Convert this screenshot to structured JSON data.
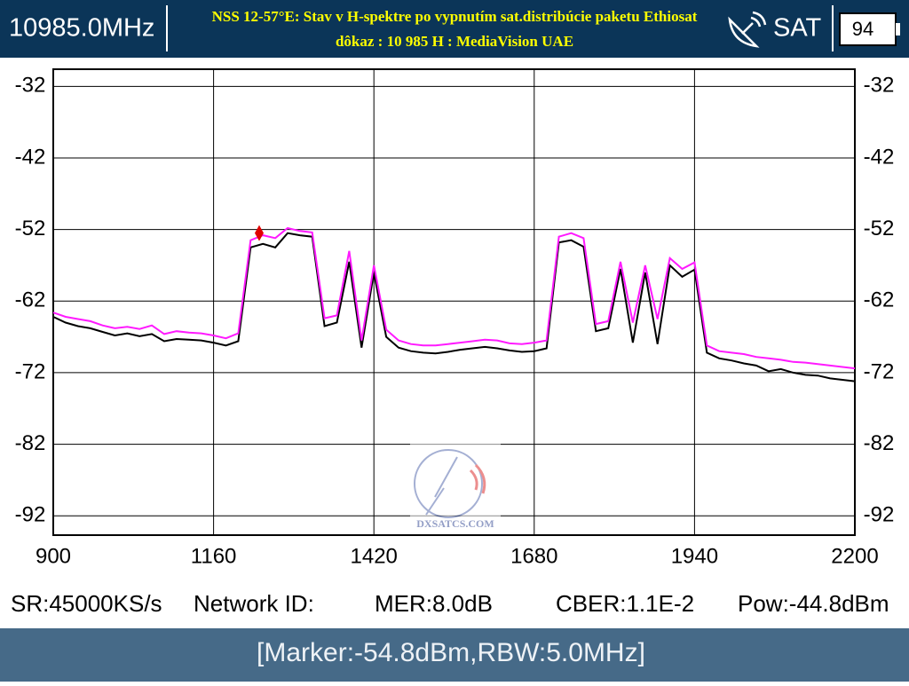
{
  "header": {
    "frequency": "10985.0MHz",
    "title": [
      "NSS 12-57°E: Stav v H-spektre po vypnutím sat.distribúcie paketu Ethiosat",
      "dôkaz : 10 985 H : MediaVision UAE"
    ],
    "mode": "SAT",
    "battery": "94"
  },
  "chart_data": {
    "type": "line",
    "x": [
      900,
      920,
      940,
      960,
      980,
      1000,
      1020,
      1040,
      1060,
      1080,
      1100,
      1120,
      1140,
      1160,
      1180,
      1200,
      1220,
      1240,
      1260,
      1280,
      1300,
      1320,
      1340,
      1360,
      1380,
      1400,
      1420,
      1440,
      1460,
      1480,
      1500,
      1520,
      1540,
      1560,
      1580,
      1600,
      1620,
      1640,
      1660,
      1680,
      1700,
      1720,
      1740,
      1760,
      1780,
      1800,
      1820,
      1840,
      1860,
      1880,
      1900,
      1920,
      1940,
      1960,
      1980,
      2000,
      2020,
      2040,
      2060,
      2080,
      2100,
      2120,
      2140,
      2160,
      2180,
      2200
    ],
    "series": [
      {
        "color": "#000000",
        "values": [
          -64.2,
          -65,
          -65.5,
          -65.8,
          -66.3,
          -66.8,
          -66.5,
          -66.9,
          -66.6,
          -67.6,
          -67.3,
          -67.4,
          -67.5,
          -67.8,
          -68.2,
          -67.6,
          -54.5,
          -54,
          -54.5,
          -52.5,
          -52.8,
          -53,
          -65.5,
          -65,
          -56.5,
          -68.5,
          -58,
          -67,
          -68.5,
          -69,
          -69.2,
          -69.3,
          -69.1,
          -68.8,
          -68.6,
          -68.4,
          -68.6,
          -68.9,
          -69.1,
          -69,
          -68.6,
          -53.8,
          -53.5,
          -54.4,
          -66.2,
          -65.8,
          -57.5,
          -67.8,
          -58,
          -68,
          -57,
          -58.6,
          -57.6,
          -69.2,
          -70,
          -70.3,
          -70.7,
          -71,
          -71.8,
          -71.5,
          -72,
          -72.3,
          -72.4,
          -72.8,
          -73,
          -73.2
        ]
      },
      {
        "color": "#ff1aff",
        "values": [
          -63.6,
          -64.2,
          -64.5,
          -64.8,
          -65.4,
          -65.8,
          -65.6,
          -65.9,
          -65.4,
          -66.6,
          -66.2,
          -66.4,
          -66.5,
          -66.8,
          -67.2,
          -66.5,
          -53.5,
          -52.8,
          -53.2,
          -51.8,
          -52.2,
          -52.4,
          -64.4,
          -64,
          -55,
          -67.5,
          -57,
          -66,
          -67.5,
          -68,
          -68.2,
          -68.2,
          -68,
          -67.8,
          -67.6,
          -67.4,
          -67.5,
          -67.9,
          -68,
          -67.8,
          -67.5,
          -53,
          -52.5,
          -53.2,
          -65.2,
          -64.8,
          -56.5,
          -65,
          -57,
          -64.5,
          -56,
          -57.5,
          -56.6,
          -68.2,
          -69,
          -69.2,
          -69.4,
          -69.8,
          -70,
          -70.2,
          -70.5,
          -70.6,
          -70.8,
          -71,
          -71.2,
          -71.4
        ]
      }
    ],
    "marker": {
      "x": 1234,
      "y": -52.5,
      "color": "#e00000"
    },
    "xlim": [
      900,
      2200
    ],
    "ylim": [
      -94.7,
      -29.6
    ],
    "xticks": [
      900,
      1160,
      1420,
      1680,
      1940,
      2200
    ],
    "yticks": [
      -32,
      -42,
      -52,
      -62,
      -72,
      -82,
      -92
    ],
    "grid": true
  },
  "status": [
    "SR:45000KS/s",
    "Network ID:",
    "MER:8.0dB",
    "CBER:1.1E-2",
    "Pow:-44.8dBm"
  ],
  "footer": "[Marker:-54.8dBm,RBW:5.0MHz]",
  "watermark": "DXSATCS.COM"
}
